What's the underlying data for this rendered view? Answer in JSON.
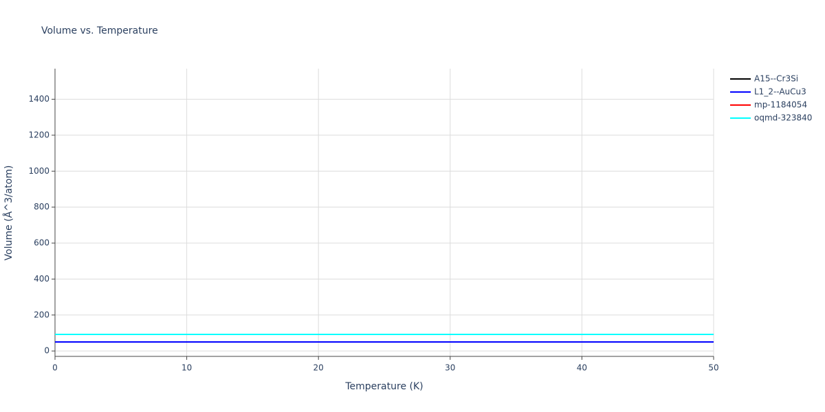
{
  "chart_data": {
    "type": "line",
    "title": "Volume vs. Temperature",
    "x_label": "Temperature (K)",
    "y_label": "Volume (Å^3/atom)",
    "x": [
      0,
      50
    ],
    "series": [
      {
        "name": "A15--Cr3Si",
        "color": "#000000",
        "values": [
          50,
          50
        ]
      },
      {
        "name": "L1_2--AuCu3",
        "color": "#0000ff",
        "values": [
          50,
          50
        ]
      },
      {
        "name": "mp-1184054",
        "color": "#ff0000",
        "values": [
          92,
          92
        ]
      },
      {
        "name": "oqmd-323840",
        "color": "#00ffff",
        "values": [
          92,
          92
        ]
      }
    ],
    "xlim": [
      0,
      50
    ],
    "xticks": [
      0,
      10,
      20,
      30,
      40,
      50
    ],
    "ylim": [
      -30,
      1570
    ],
    "yticks": [
      0,
      200,
      400,
      600,
      800,
      1000,
      1200,
      1400
    ],
    "grid": true,
    "legend": "right"
  }
}
